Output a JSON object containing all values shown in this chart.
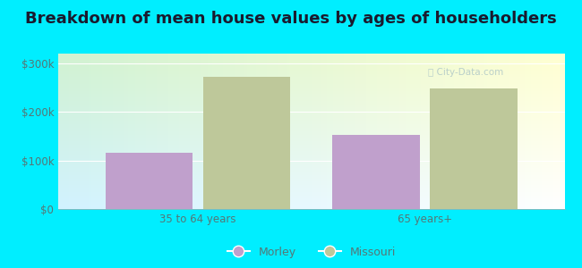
{
  "title": "Breakdown of mean house values by ages of householders",
  "categories": [
    "35 to 64 years",
    "65 years+"
  ],
  "morley_values": [
    115000,
    152000
  ],
  "missouri_values": [
    272000,
    248000
  ],
  "morley_color": "#c0a0cc",
  "missouri_color": "#bec89a",
  "ylim": [
    0,
    320000
  ],
  "yticks": [
    0,
    100000,
    200000,
    300000
  ],
  "ytick_labels": [
    "$0",
    "$100k",
    "$200k",
    "$300k"
  ],
  "background_color": "#00eeff",
  "title_fontsize": 13,
  "title_color": "#1a1a2e",
  "tick_color": "#557777",
  "legend_labels": [
    "Morley",
    "Missouri"
  ],
  "bar_width": 0.25,
  "group_centers": [
    0.35,
    1.0
  ]
}
